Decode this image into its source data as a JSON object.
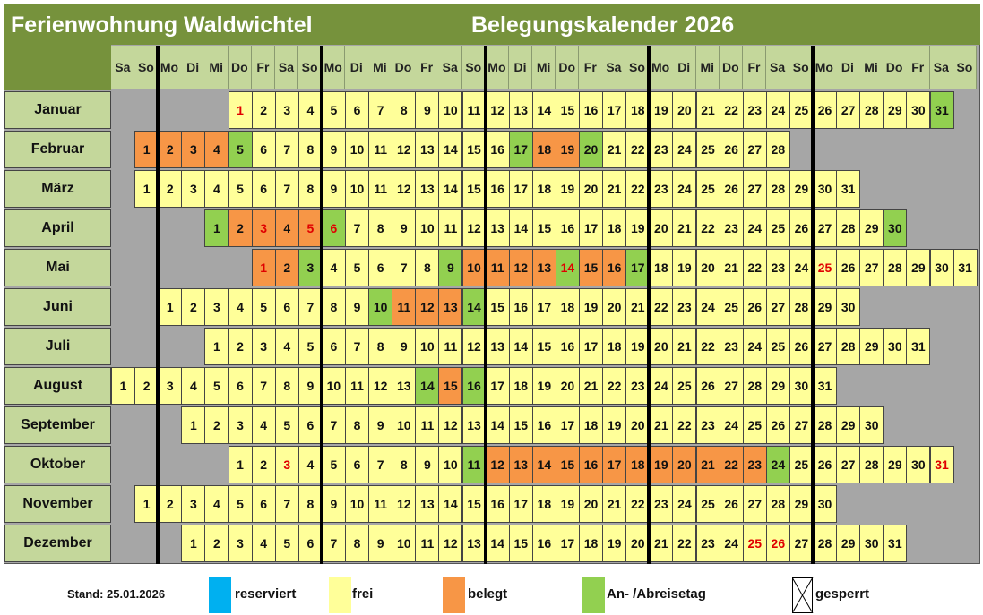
{
  "title_left": "Ferienwohnung Waldwichtel",
  "title_right": "Belegungskalender 2026",
  "year": 2026,
  "weekday_headers": [
    "Sa",
    "So",
    "Mo",
    "Di",
    "Mi",
    "Do",
    "Fr",
    "Sa",
    "So",
    "Mo",
    "Di",
    "Mi",
    "Do",
    "Fr",
    "Sa",
    "So",
    "Mo",
    "Di",
    "Mi",
    "Do",
    "Fr",
    "Sa",
    "So",
    "Mo",
    "Di",
    "Mi",
    "Do",
    "Fr",
    "Sa",
    "So",
    "Mo",
    "Di",
    "Mi",
    "Do",
    "Fr",
    "Sa",
    "So"
  ],
  "colors": {
    "frei": "#ffff99",
    "belegt": "#f79646",
    "an_ab": "#92d050",
    "reserviert": "#00b0f0",
    "holiday_text": "#e00000",
    "header": "#76923c",
    "subheader": "#c4d79b",
    "background": "#a6a6a6"
  },
  "months": [
    {
      "name": "Januar",
      "days": 31,
      "belegt": [],
      "an_ab": [
        31
      ],
      "holidays": [
        1
      ]
    },
    {
      "name": "Februar",
      "days": 28,
      "belegt": [
        1,
        2,
        3,
        4,
        18,
        19
      ],
      "an_ab": [
        5,
        17,
        20
      ],
      "holidays": []
    },
    {
      "name": "März",
      "days": 31,
      "belegt": [],
      "an_ab": [],
      "holidays": []
    },
    {
      "name": "April",
      "days": 30,
      "belegt": [
        2,
        3,
        4,
        5
      ],
      "an_ab": [
        1,
        6,
        30
      ],
      "holidays": [
        3,
        5,
        6
      ]
    },
    {
      "name": "Mai",
      "days": 31,
      "belegt": [
        1,
        2,
        10,
        11,
        12,
        13,
        15,
        16
      ],
      "an_ab": [
        3,
        9,
        14,
        17
      ],
      "holidays": [
        1,
        14,
        25
      ]
    },
    {
      "name": "Juni",
      "days": 30,
      "belegt": [
        11,
        12,
        13
      ],
      "an_ab": [
        10,
        14
      ],
      "holidays": []
    },
    {
      "name": "Juli",
      "days": 31,
      "belegt": [],
      "an_ab": [],
      "holidays": []
    },
    {
      "name": "August",
      "days": 31,
      "belegt": [
        15
      ],
      "an_ab": [
        14,
        16
      ],
      "holidays": []
    },
    {
      "name": "September",
      "days": 30,
      "belegt": [],
      "an_ab": [],
      "holidays": []
    },
    {
      "name": "Oktober",
      "days": 31,
      "belegt": [
        12,
        13,
        14,
        15,
        16,
        17,
        18,
        19,
        20,
        21,
        22,
        23
      ],
      "an_ab": [
        11,
        24
      ],
      "holidays": [
        3,
        31
      ]
    },
    {
      "name": "November",
      "days": 30,
      "belegt": [],
      "an_ab": [],
      "holidays": []
    },
    {
      "name": "Dezember",
      "days": 31,
      "belegt": [],
      "an_ab": [],
      "holidays": [
        25,
        26
      ]
    }
  ],
  "legend": {
    "stand": "Stand: 25.01.2026",
    "reserviert": "reserviert",
    "frei": "frei",
    "belegt": "belegt",
    "an_ab": "An- /Abreisetag",
    "gesperrt": "gesperrt"
  }
}
